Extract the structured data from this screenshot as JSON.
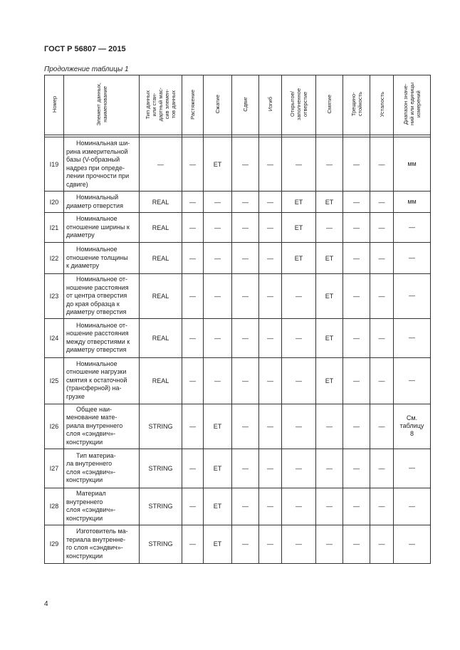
{
  "document": {
    "header": "ГОСТ Р 56807 — 2015",
    "continuation": "Продолжение таблицы 1",
    "page_number": "4"
  },
  "table": {
    "columns": [
      "Номер",
      "Элемент данных,\nнаименование",
      "Тип данных\nили стан-\nдартный мас-\nсив элемен-\nтов данных",
      "Растяжение",
      "Сжатие",
      "Сдвиг",
      "Изгиб",
      "Открытое/\nзаполненное\nотверстие",
      "Смятие",
      "Трещино-\nстойкость",
      "Усталость",
      "Диапазон значе-\nний или единицы\nизмерений"
    ],
    "rows": [
      {
        "num": "I19",
        "element": [
          "Номинальная ши-",
          "рина измерительной",
          "базы (V-образный",
          "надрез при опреде-",
          "лении прочности при",
          "сдвиге)"
        ],
        "cells": [
          "—",
          "—",
          "ET",
          "—",
          "—",
          "—",
          "—",
          "—",
          "—",
          "мм"
        ]
      },
      {
        "num": "I20",
        "element": [
          "Номинальный",
          "диаметр отверстия"
        ],
        "cells": [
          "REAL",
          "—",
          "—",
          "—",
          "—",
          "ET",
          "ET",
          "—",
          "—",
          "мм"
        ]
      },
      {
        "num": "I21",
        "element": [
          "Номинальное",
          "отношение ширины к",
          "диаметру"
        ],
        "cells": [
          "REAL",
          "—",
          "—",
          "—",
          "—",
          "ET",
          "—",
          "—",
          "—",
          "—"
        ]
      },
      {
        "num": "I22",
        "element": [
          "Номинальное",
          "отношение толщины",
          "к диаметру"
        ],
        "cells": [
          "REAL",
          "—",
          "—",
          "—",
          "—",
          "ET",
          "ET",
          "—",
          "—",
          "—"
        ]
      },
      {
        "num": "I23",
        "element": [
          "Номинальное от-",
          "ношение расстояния",
          "от центра отверстия",
          "до края образца к",
          "диаметру отверстия"
        ],
        "cells": [
          "REAL",
          "—",
          "—",
          "—",
          "—",
          "—",
          "ET",
          "—",
          "—",
          "—"
        ]
      },
      {
        "num": "I24",
        "element": [
          "Номинальное от-",
          "ношение расстояния",
          "между отверстиями к",
          "диаметру отверстия"
        ],
        "cells": [
          "REAL",
          "—",
          "—",
          "—",
          "—",
          "—",
          "ET",
          "—",
          "—",
          "—"
        ]
      },
      {
        "num": "I25",
        "element": [
          "Номинальное",
          "отношение нагрузки",
          "смятия к остаточной",
          "(трансферной) на-",
          "грузке"
        ],
        "cells": [
          "REAL",
          "—",
          "—",
          "—",
          "—",
          "—",
          "ET",
          "—",
          "—",
          "—"
        ]
      },
      {
        "num": "I26",
        "element": [
          "Общее наи-",
          "менование мате-",
          "риала внутреннего",
          "слоя «сэндвич»-",
          "конструкции"
        ],
        "cells": [
          "STRING",
          "—",
          "ET",
          "—",
          "—",
          "—",
          "—",
          "—",
          "—",
          "См.\nтаблицу\n8"
        ]
      },
      {
        "num": "I27",
        "element": [
          "Тип материа-",
          "ла внутреннего",
          "слоя «сэндвич»-",
          "конструкции"
        ],
        "cells": [
          "STRING",
          "—",
          "ET",
          "—",
          "—",
          "—",
          "—",
          "—",
          "—",
          "—"
        ]
      },
      {
        "num": "I28",
        "element": [
          "Материал",
          "внутреннего",
          "слоя «сэндвич»-",
          "конструкции"
        ],
        "cells": [
          "STRING",
          "—",
          "ET",
          "—",
          "—",
          "—",
          "—",
          "—",
          "—",
          "—"
        ]
      },
      {
        "num": "I29",
        "element": [
          "Изготовитель ма-",
          "териала внутренне-",
          "го слоя «сэндвич»-",
          "конструкции"
        ],
        "cells": [
          "STRING",
          "—",
          "ET",
          "—",
          "—",
          "—",
          "—",
          "—",
          "—",
          "—"
        ]
      }
    ]
  }
}
